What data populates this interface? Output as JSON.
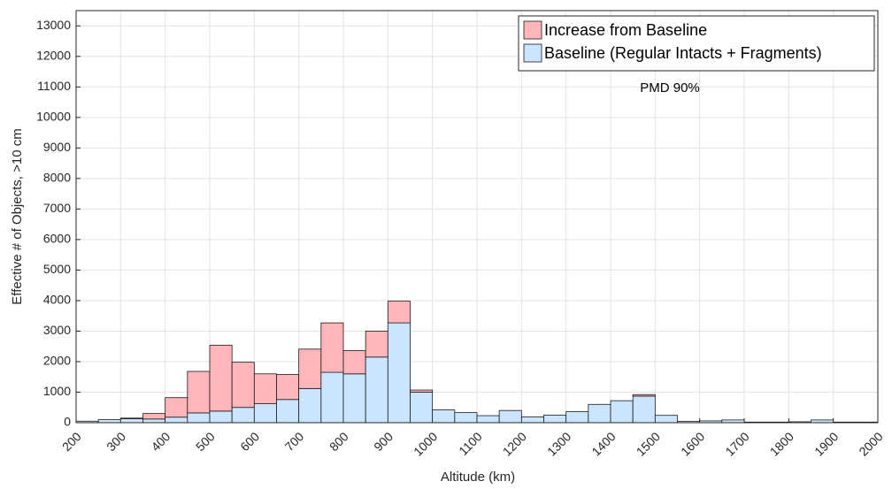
{
  "chart_data": {
    "type": "histogram",
    "annotation": "PMD 90%",
    "xlabel": "Altitude (km)",
    "ylabel": "Effective # of Objects, >10 cm",
    "bins": [
      200,
      250,
      300,
      350,
      400,
      450,
      500,
      550,
      600,
      650,
      700,
      750,
      800,
      850,
      900,
      950,
      1000,
      1050,
      1100,
      1150,
      1200,
      1250,
      1300,
      1350,
      1400,
      1450,
      1500,
      1550,
      1600,
      1650,
      1700,
      1750,
      1800,
      1850,
      1900,
      1950,
      2000
    ],
    "series": [
      {
        "name": "Increase from Baseline",
        "color": "#ffb6ba",
        "values": [
          0,
          0,
          20,
          180,
          640,
          1360,
          2160,
          1480,
          980,
          820,
          1290,
          1620,
          760,
          850,
          710,
          70,
          0,
          0,
          0,
          0,
          0,
          0,
          0,
          0,
          0,
          50,
          0,
          0,
          0,
          0,
          0,
          0,
          0,
          0,
          0,
          0
        ]
      },
      {
        "name": "Baseline (Regular Intacts + Fragments)",
        "color": "#cce5ff",
        "values": [
          50,
          100,
          130,
          120,
          180,
          320,
          380,
          500,
          620,
          760,
          1120,
          1650,
          1600,
          2150,
          3270,
          1000,
          420,
          330,
          230,
          400,
          190,
          250,
          360,
          600,
          720,
          870,
          240,
          40,
          60,
          90,
          20,
          20,
          30,
          90,
          20,
          20
        ]
      }
    ],
    "xlim": [
      200,
      2000
    ],
    "xticks": [
      200,
      300,
      400,
      500,
      600,
      700,
      800,
      900,
      1000,
      1100,
      1200,
      1300,
      1400,
      1500,
      1600,
      1700,
      1800,
      1900,
      2000
    ],
    "ylim": [
      0,
      13500
    ],
    "yticks": [
      0,
      1000,
      2000,
      3000,
      4000,
      5000,
      6000,
      7000,
      8000,
      9000,
      10000,
      11000,
      12000,
      13000
    ],
    "grid": true,
    "legend": "top-right"
  }
}
